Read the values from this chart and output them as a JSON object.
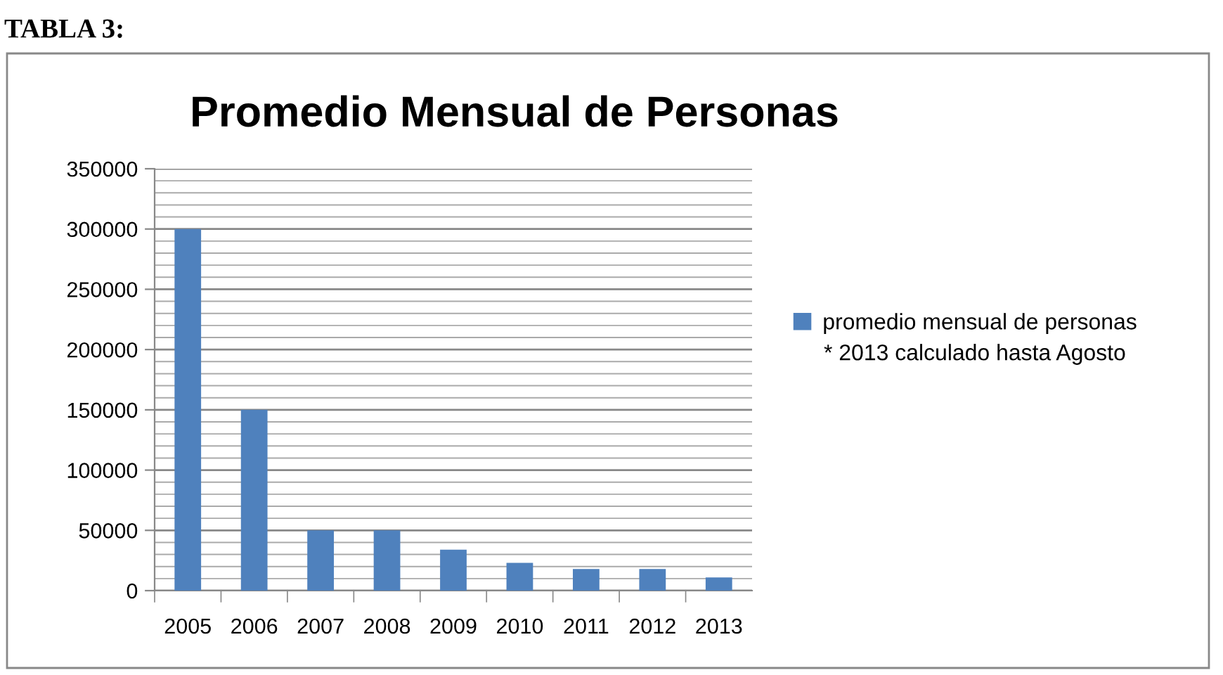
{
  "chart_data": {
    "type": "bar",
    "title": "Promedio Mensual de Personas",
    "categories": [
      "2005",
      "2006",
      "2007",
      "2008",
      "2009",
      "2010",
      "2011",
      "2012",
      "2013"
    ],
    "series": [
      {
        "name": "promedio mensual de personas",
        "color": "#4f81bd",
        "values": [
          300000,
          150000,
          50000,
          50000,
          34000,
          23000,
          18000,
          18000,
          11000
        ]
      }
    ],
    "ylim": [
      0,
      350000
    ],
    "yticks": [
      0,
      50000,
      100000,
      150000,
      200000,
      250000,
      300000,
      350000
    ],
    "grid": "y",
    "legend": "right",
    "annotations": [
      "TABLA 3:",
      "* 2013 calculado hasta Agosto"
    ]
  }
}
